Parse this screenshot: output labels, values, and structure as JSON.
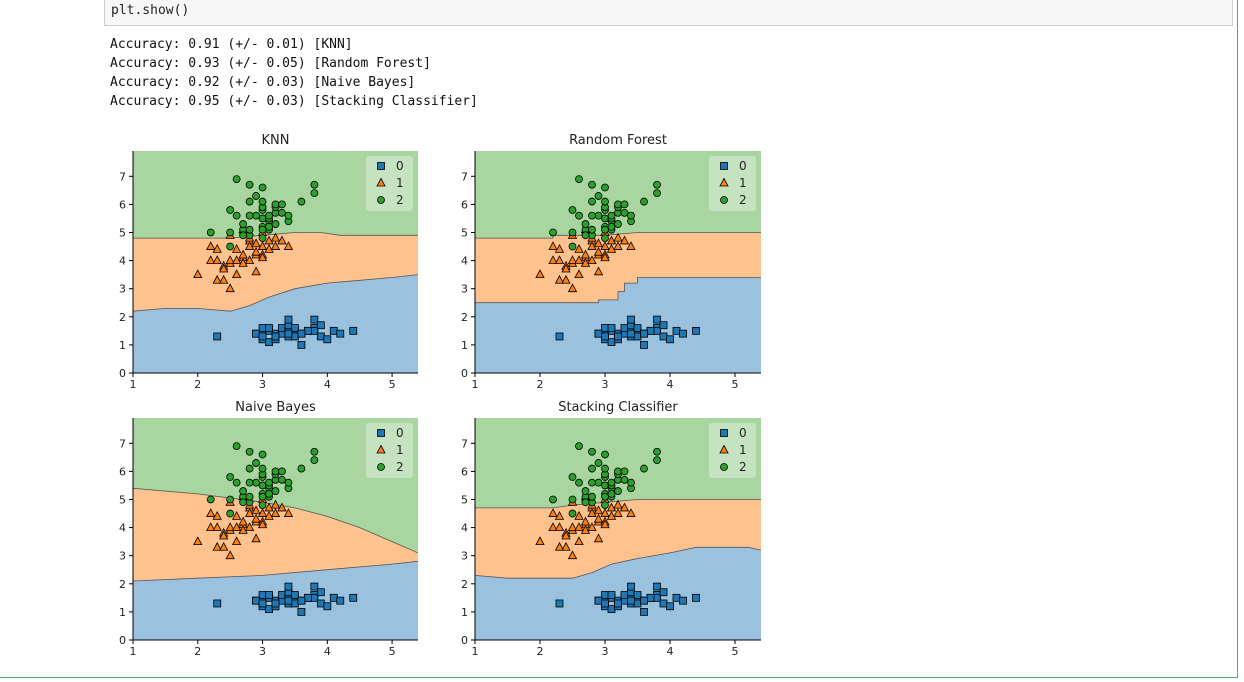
{
  "notebook": {
    "code_line": "plt.show()",
    "output_lines": [
      "Accuracy: 0.91 (+/- 0.01) [KNN]",
      "Accuracy: 0.93 (+/- 0.05) [Random Forest]",
      "Accuracy: 0.92 (+/- 0.03) [Naive Bayes]",
      "Accuracy: 0.95 (+/- 0.03) [Stacking Classifier]"
    ]
  },
  "colors": {
    "class0": "#1f77b4",
    "class1": "#ff7f0e",
    "class2": "#2ca02c",
    "region0": "#9ac1de",
    "region1": "#fec28e",
    "region2": "#a8d5a0"
  },
  "points": {
    "class0": [
      [
        2.3,
        1.3
      ],
      [
        2.9,
        1.4
      ],
      [
        3.0,
        1.4
      ],
      [
        3.0,
        1.2
      ],
      [
        3.1,
        1.5
      ],
      [
        3.1,
        1.1
      ],
      [
        3.2,
        1.4
      ],
      [
        3.2,
        1.2
      ],
      [
        3.3,
        1.4
      ],
      [
        3.3,
        1.6
      ],
      [
        3.4,
        1.5
      ],
      [
        3.4,
        1.3
      ],
      [
        3.4,
        1.7
      ],
      [
        3.5,
        1.4
      ],
      [
        3.5,
        1.5
      ],
      [
        3.5,
        1.6
      ],
      [
        3.5,
        1.3
      ],
      [
        3.6,
        1.4
      ],
      [
        3.6,
        1.0
      ],
      [
        3.7,
        1.5
      ],
      [
        3.8,
        1.6
      ],
      [
        3.8,
        1.9
      ],
      [
        3.8,
        1.5
      ],
      [
        3.9,
        1.7
      ],
      [
        3.9,
        1.3
      ],
      [
        4.0,
        1.2
      ],
      [
        4.1,
        1.5
      ],
      [
        4.2,
        1.4
      ],
      [
        4.4,
        1.5
      ],
      [
        3.0,
        1.6
      ],
      [
        3.1,
        1.6
      ],
      [
        3.2,
        1.3
      ],
      [
        3.4,
        1.9
      ],
      [
        3.7,
        1.5
      ],
      [
        2.9,
        1.4
      ],
      [
        3.0,
        1.3
      ],
      [
        3.4,
        1.4
      ],
      [
        3.6,
        1.4
      ]
    ],
    "class1": [
      [
        2.0,
        3.5
      ],
      [
        2.2,
        4.0
      ],
      [
        2.2,
        4.5
      ],
      [
        2.3,
        3.3
      ],
      [
        2.3,
        4.0
      ],
      [
        2.3,
        4.4
      ],
      [
        2.4,
        3.3
      ],
      [
        2.4,
        3.8
      ],
      [
        2.5,
        3.0
      ],
      [
        2.5,
        3.9
      ],
      [
        2.5,
        4.0
      ],
      [
        2.6,
        4.4
      ],
      [
        2.6,
        4.0
      ],
      [
        2.7,
        4.1
      ],
      [
        2.7,
        3.9
      ],
      [
        2.7,
        4.2
      ],
      [
        2.7,
        5.1
      ],
      [
        2.8,
        4.7
      ],
      [
        2.8,
        4.5
      ],
      [
        2.8,
        4.0
      ],
      [
        2.8,
        4.8
      ],
      [
        2.9,
        4.6
      ],
      [
        2.9,
        4.2
      ],
      [
        2.9,
        3.6
      ],
      [
        2.9,
        4.3
      ],
      [
        3.0,
        4.2
      ],
      [
        3.0,
        4.5
      ],
      [
        3.0,
        4.1
      ],
      [
        3.0,
        5.0
      ],
      [
        3.1,
        4.7
      ],
      [
        3.1,
        4.4
      ],
      [
        3.2,
        4.5
      ],
      [
        3.2,
        4.8
      ],
      [
        3.3,
        4.7
      ],
      [
        3.4,
        4.5
      ],
      [
        2.5,
        4.9
      ],
      [
        2.6,
        3.5
      ],
      [
        2.4,
        3.7
      ]
    ],
    "class2": [
      [
        2.2,
        5.0
      ],
      [
        2.5,
        4.5
      ],
      [
        2.5,
        5.0
      ],
      [
        2.5,
        5.8
      ],
      [
        2.6,
        5.6
      ],
      [
        2.6,
        6.9
      ],
      [
        2.7,
        5.1
      ],
      [
        2.7,
        5.3
      ],
      [
        2.8,
        4.9
      ],
      [
        2.8,
        5.1
      ],
      [
        2.8,
        6.1
      ],
      [
        2.8,
        6.7
      ],
      [
        2.9,
        5.6
      ],
      [
        3.0,
        5.8
      ],
      [
        3.0,
        5.5
      ],
      [
        3.0,
        6.6
      ],
      [
        3.0,
        5.2
      ],
      [
        3.0,
        5.9
      ],
      [
        3.1,
        5.4
      ],
      [
        3.1,
        5.5
      ],
      [
        3.1,
        5.6
      ],
      [
        3.2,
        5.7
      ],
      [
        3.2,
        5.9
      ],
      [
        3.2,
        6.0
      ],
      [
        3.3,
        5.7
      ],
      [
        3.4,
        5.4
      ],
      [
        3.4,
        5.6
      ],
      [
        3.6,
        6.1
      ],
      [
        3.8,
        6.4
      ],
      [
        3.8,
        6.7
      ],
      [
        3.0,
        6.1
      ],
      [
        2.9,
        6.3
      ],
      [
        3.1,
        5.1
      ],
      [
        3.3,
        6.0
      ],
      [
        2.7,
        4.9
      ],
      [
        3.0,
        4.8
      ],
      [
        3.1,
        5.2
      ],
      [
        2.8,
        5.6
      ],
      [
        3.2,
        5.3
      ],
      [
        3.0,
        5.1
      ]
    ]
  },
  "chart_data": [
    {
      "type": "scatter",
      "title": "KNN",
      "xlim": [
        1,
        5.4
      ],
      "ylim": [
        0,
        7.9
      ],
      "xticks": [
        1,
        2,
        3,
        4,
        5
      ],
      "yticks": [
        0,
        1,
        2,
        3,
        4,
        5,
        6,
        7
      ],
      "legend": [
        "0",
        "1",
        "2"
      ],
      "legend_position": "top-right",
      "boundary_01": [
        [
          1.0,
          2.2
        ],
        [
          1.5,
          2.3
        ],
        [
          2.0,
          2.3
        ],
        [
          2.5,
          2.2
        ],
        [
          2.8,
          2.4
        ],
        [
          3.1,
          2.7
        ],
        [
          3.5,
          3.0
        ],
        [
          4.0,
          3.2
        ],
        [
          4.5,
          3.3
        ],
        [
          5.0,
          3.4
        ],
        [
          5.4,
          3.5
        ]
      ],
      "boundary_12": [
        [
          1.0,
          4.8
        ],
        [
          2.0,
          4.8
        ],
        [
          2.5,
          4.8
        ],
        [
          3.0,
          4.9
        ],
        [
          3.5,
          5.0
        ],
        [
          3.9,
          5.0
        ],
        [
          4.2,
          4.9
        ],
        [
          5.4,
          4.9
        ]
      ]
    },
    {
      "type": "scatter",
      "title": "Random Forest",
      "xlim": [
        1,
        5.4
      ],
      "ylim": [
        0,
        7.9
      ],
      "xticks": [
        1,
        2,
        3,
        4,
        5
      ],
      "yticks": [
        0,
        1,
        2,
        3,
        4,
        5,
        6,
        7
      ],
      "legend": [
        "0",
        "1",
        "2"
      ],
      "legend_position": "top-right",
      "boundary_01": [
        [
          1.0,
          2.5
        ],
        [
          2.9,
          2.5
        ],
        [
          2.9,
          2.6
        ],
        [
          3.2,
          2.6
        ],
        [
          3.2,
          2.9
        ],
        [
          3.3,
          2.9
        ],
        [
          3.3,
          3.2
        ],
        [
          3.5,
          3.2
        ],
        [
          3.5,
          3.4
        ],
        [
          5.4,
          3.4
        ]
      ],
      "boundary_12": [
        [
          1.0,
          4.8
        ],
        [
          2.2,
          4.8
        ],
        [
          2.2,
          4.9
        ],
        [
          3.0,
          4.9
        ],
        [
          3.5,
          5.0
        ],
        [
          5.4,
          5.0
        ]
      ]
    },
    {
      "type": "scatter",
      "title": "Naive Bayes",
      "xlim": [
        1,
        5.4
      ],
      "ylim": [
        0,
        7.9
      ],
      "xticks": [
        1,
        2,
        3,
        4,
        5
      ],
      "yticks": [
        0,
        1,
        2,
        3,
        4,
        5,
        6,
        7
      ],
      "legend": [
        "0",
        "1",
        "2"
      ],
      "legend_position": "top-right",
      "boundary_01": [
        [
          1.0,
          2.1
        ],
        [
          2.0,
          2.2
        ],
        [
          3.0,
          2.3
        ],
        [
          4.0,
          2.5
        ],
        [
          5.0,
          2.7
        ],
        [
          5.4,
          2.8
        ]
      ],
      "boundary_12": [
        [
          1.0,
          5.4
        ],
        [
          2.0,
          5.2
        ],
        [
          3.0,
          4.9
        ],
        [
          3.5,
          4.7
        ],
        [
          4.0,
          4.4
        ],
        [
          4.5,
          4.0
        ],
        [
          5.0,
          3.5
        ],
        [
          5.4,
          3.1
        ]
      ]
    },
    {
      "type": "scatter",
      "title": "Stacking Classifier",
      "xlim": [
        1,
        5.4
      ],
      "ylim": [
        0,
        7.9
      ],
      "xticks": [
        1,
        2,
        3,
        4,
        5
      ],
      "yticks": [
        0,
        1,
        2,
        3,
        4,
        5,
        6,
        7
      ],
      "legend": [
        "0",
        "1",
        "2"
      ],
      "legend_position": "top-right",
      "boundary_01": [
        [
          1.0,
          2.3
        ],
        [
          1.5,
          2.2
        ],
        [
          2.0,
          2.2
        ],
        [
          2.5,
          2.2
        ],
        [
          2.8,
          2.4
        ],
        [
          3.1,
          2.7
        ],
        [
          3.5,
          2.9
        ],
        [
          4.0,
          3.1
        ],
        [
          4.4,
          3.3
        ],
        [
          4.8,
          3.3
        ],
        [
          5.2,
          3.3
        ],
        [
          5.4,
          3.2
        ]
      ],
      "boundary_12": [
        [
          1.0,
          4.7
        ],
        [
          2.2,
          4.7
        ],
        [
          2.5,
          4.8
        ],
        [
          3.0,
          4.9
        ],
        [
          3.5,
          5.0
        ],
        [
          3.7,
          5.0
        ],
        [
          4.0,
          5.0
        ],
        [
          5.4,
          5.0
        ]
      ]
    }
  ]
}
